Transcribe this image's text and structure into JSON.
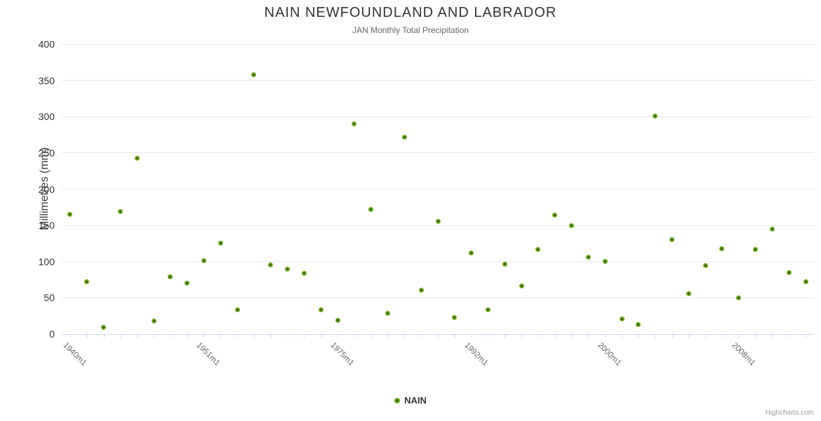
{
  "header": {
    "title": "NAIN NEWFOUNDLAND AND LABRADOR",
    "subtitle": "JAN Monthly Total Precipitation"
  },
  "legend": {
    "series_label": "NAIN"
  },
  "credits": "Highcharts.com",
  "colors": {
    "marker_outer": "#74b011",
    "marker_inner": "#3c6e0a",
    "grid": "#e6e6e6",
    "axis": "#ccd6eb",
    "title_text": "#333333",
    "subtitle_text": "#666666",
    "y_label_text": "#333333",
    "x_label_text": "#666666",
    "credits_text": "#999999"
  },
  "chart_data": {
    "type": "scatter",
    "title": "NAIN NEWFOUNDLAND AND LABRADOR",
    "subtitle": "JAN Monthly Total Precipitation",
    "ylabel": "Millimetres (mm)",
    "xlabel": "",
    "ylim": [
      0,
      400
    ],
    "y_ticks": [
      0,
      50,
      100,
      150,
      200,
      250,
      300,
      350,
      400
    ],
    "grid": true,
    "legend_position": "bottom-center",
    "n_points": 45,
    "x_tick_labels": [
      {
        "index": 0,
        "label": "1940m1"
      },
      {
        "index": 8,
        "label": "1951m1"
      },
      {
        "index": 16,
        "label": "1975m1"
      },
      {
        "index": 24,
        "label": "1992m1"
      },
      {
        "index": 32,
        "label": "2000m1"
      },
      {
        "index": 40,
        "label": "2008m1"
      }
    ],
    "series": [
      {
        "name": "NAIN",
        "values": [
          165,
          72,
          9,
          169,
          243,
          18,
          79,
          70,
          101,
          125,
          33,
          358,
          95,
          90,
          84,
          33,
          19,
          290,
          172,
          29,
          272,
          61,
          155,
          23,
          112,
          33,
          96,
          66,
          117,
          164,
          150,
          106,
          100,
          21,
          13,
          301,
          130,
          56,
          94,
          118,
          50,
          117,
          145,
          85,
          72
        ]
      }
    ]
  }
}
